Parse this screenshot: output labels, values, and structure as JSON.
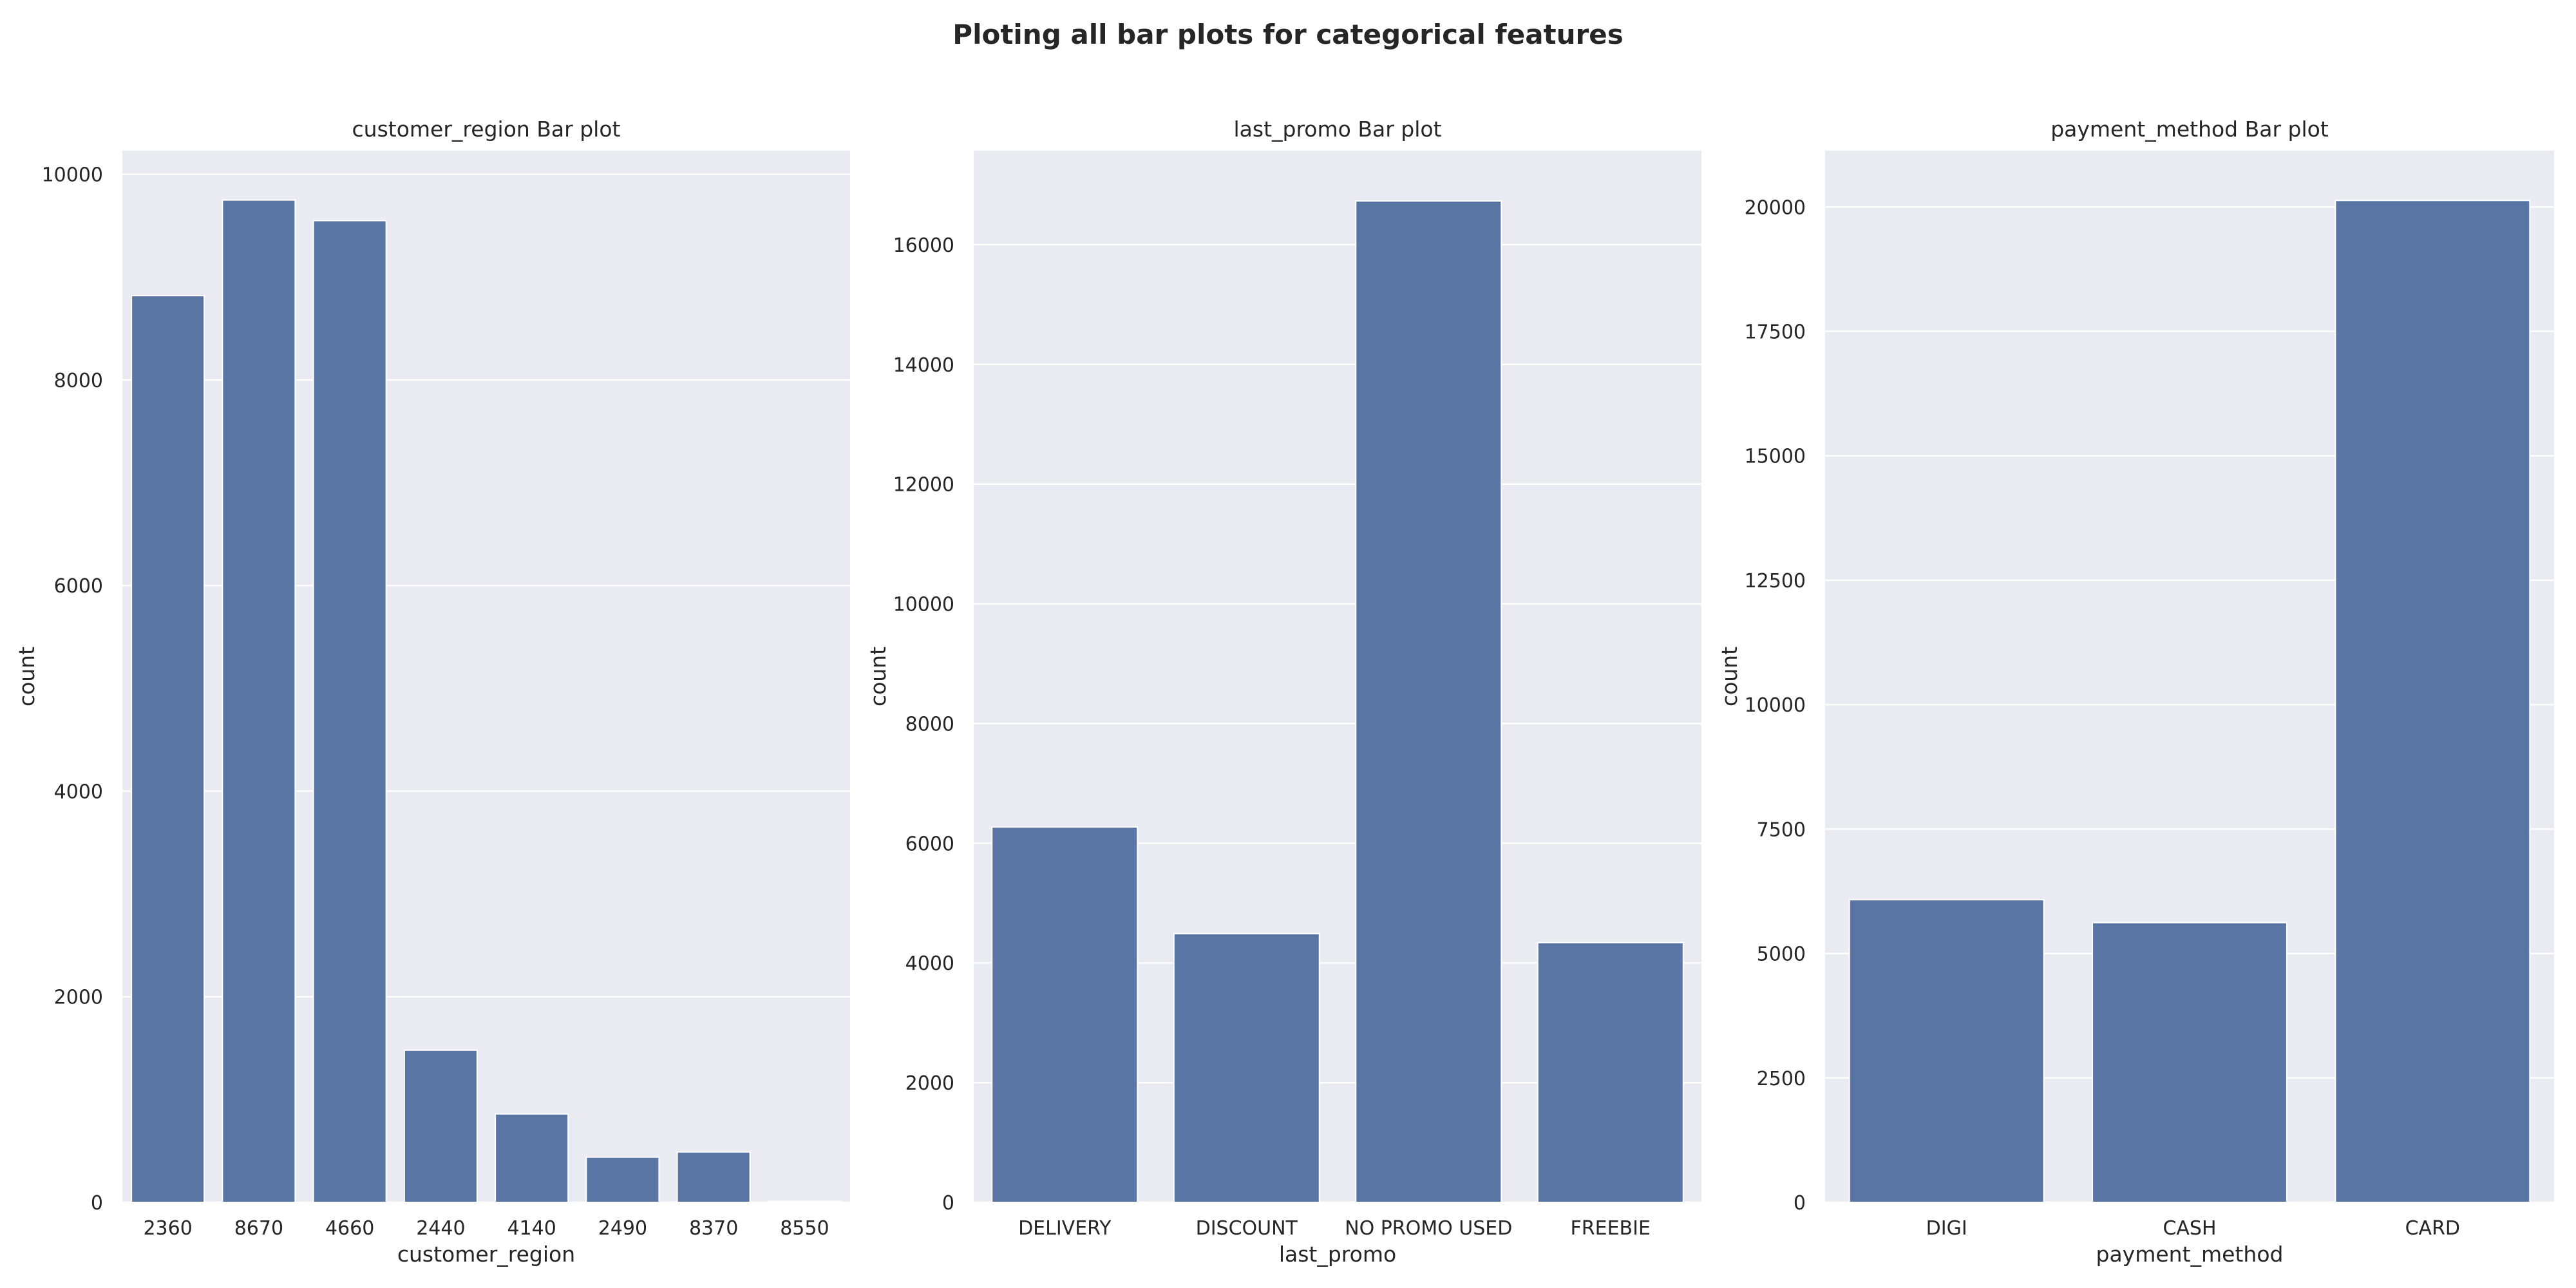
{
  "figure": {
    "title": "Ploting all bar plots for categorical features"
  },
  "style": {
    "background": "#ffffff",
    "axes_facecolor": "#eaeaf2",
    "grid_color": "#ffffff",
    "bar_color": "#5975a4",
    "text_color": "#262626"
  },
  "chart_data": [
    {
      "type": "bar",
      "title": "customer_region Bar plot",
      "xlabel": "customer_region",
      "ylabel": "count",
      "categories": [
        "2360",
        "8670",
        "4660",
        "2440",
        "4140",
        "2490",
        "8370",
        "8550"
      ],
      "values": [
        8820,
        9750,
        9550,
        1480,
        860,
        440,
        490,
        10
      ],
      "ylim": [
        0,
        10230
      ],
      "yticks": [
        0,
        2000,
        4000,
        6000,
        8000,
        10000
      ],
      "grid": true
    },
    {
      "type": "bar",
      "title": "last_promo Bar plot",
      "xlabel": "last_promo",
      "ylabel": "count",
      "categories": [
        "DELIVERY",
        "DISCOUNT",
        "NO PROMO USED",
        "FREEBIE"
      ],
      "values": [
        6270,
        4490,
        16730,
        4340
      ],
      "ylim": [
        0,
        17570
      ],
      "yticks": [
        0,
        2000,
        4000,
        6000,
        8000,
        10000,
        12000,
        14000,
        16000
      ],
      "grid": true
    },
    {
      "type": "bar",
      "title": "payment_method Bar plot",
      "xlabel": "payment_method",
      "ylabel": "count",
      "categories": [
        "DIGI",
        "CASH",
        "CARD"
      ],
      "values": [
        6080,
        5620,
        20130
      ],
      "ylim": [
        0,
        21130
      ],
      "yticks": [
        0,
        2500,
        5000,
        7500,
        10000,
        12500,
        15000,
        17500,
        20000
      ],
      "grid": true
    }
  ]
}
